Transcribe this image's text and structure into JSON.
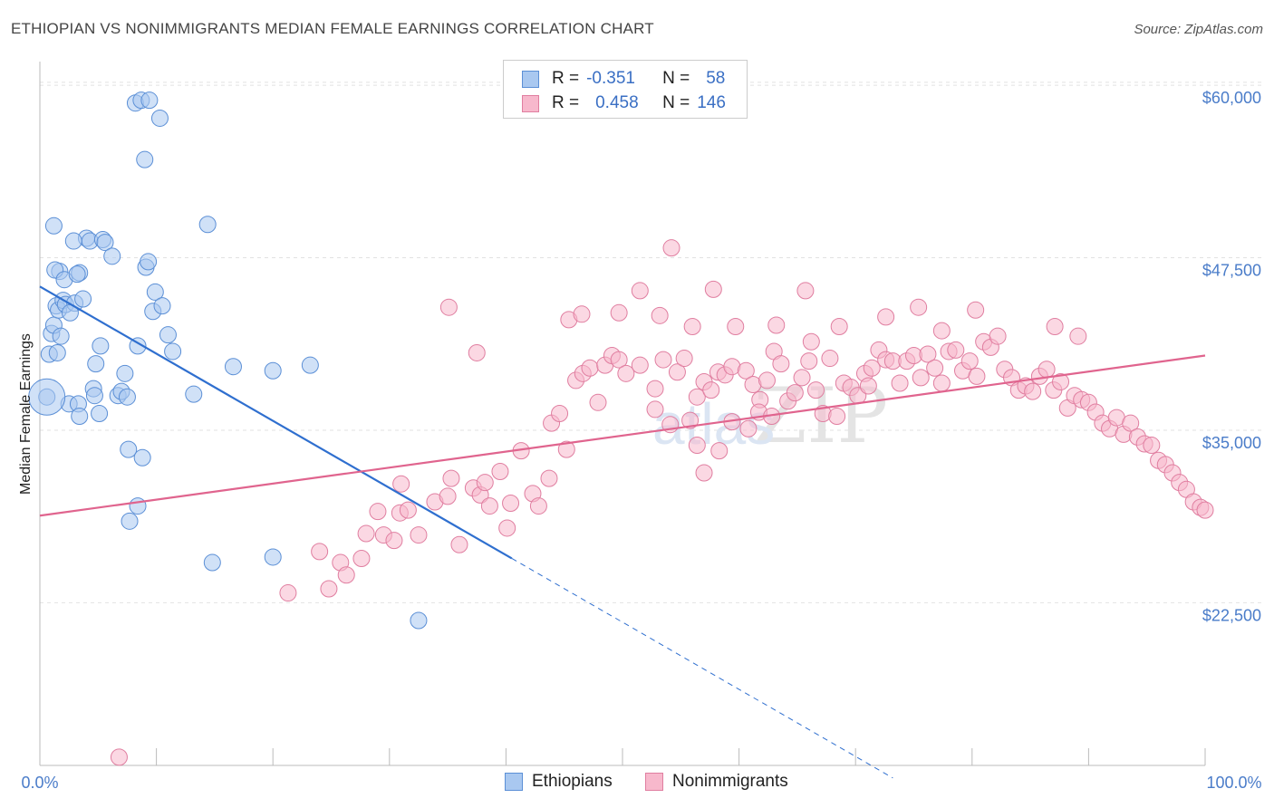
{
  "header": {
    "title": "ETHIOPIAN VS NONIMMIGRANTS MEDIAN FEMALE EARNINGS CORRELATION CHART",
    "source": "Source: ZipAtlas.com"
  },
  "legend": {
    "rows": [
      {
        "r_label": "R =",
        "r_value": "-0.351",
        "n_label": "N =",
        "n_value": "58",
        "color": "#a9c8f0",
        "stroke": "#5b8fd6"
      },
      {
        "r_label": "R =",
        "r_value": "0.458",
        "n_label": "N =",
        "n_value": "146",
        "color": "#f7b8cc",
        "stroke": "#e07ea0"
      }
    ],
    "bottom": [
      "Ethiopians",
      "Nonimmigrants"
    ]
  },
  "watermark": {
    "zip": "ZIP",
    "atlas": "atlas"
  },
  "chart_data": {
    "type": "scatter",
    "title": "ETHIOPIAN VS NONIMMIGRANTS MEDIAN FEMALE EARNINGS CORRELATION CHART",
    "xlabel": "",
    "ylabel": "Median Female Earnings",
    "xlim": [
      0,
      100
    ],
    "ylim": [
      11500,
      62500
    ],
    "x_tick_labels": [
      "0.0%",
      "100.0%"
    ],
    "y_ticks": [
      22500,
      35000,
      47500,
      60000
    ],
    "y_tick_labels": [
      "$22,500",
      "$35,000",
      "$47,500",
      "$60,000"
    ],
    "grid": true,
    "series": [
      {
        "name": "Ethiopians",
        "color": "#a9c8f0",
        "stroke": "#5b8fd6",
        "trend": {
          "x0": 0,
          "y0": 46200,
          "x1": 40.5,
          "y1": 26500,
          "dash_to_x": 73.2
        },
        "points": [
          [
            0.6,
            38200
          ],
          [
            0.8,
            41300
          ],
          [
            1.0,
            42800
          ],
          [
            1.2,
            43400
          ],
          [
            1.4,
            44800
          ],
          [
            1.5,
            41400
          ],
          [
            1.7,
            47300
          ],
          [
            1.2,
            50600
          ],
          [
            1.3,
            47400
          ],
          [
            1.6,
            44500
          ],
          [
            2.0,
            45200
          ],
          [
            2.1,
            46700
          ],
          [
            2.2,
            44900
          ],
          [
            1.8,
            42600
          ],
          [
            3.0,
            45000
          ],
          [
            2.6,
            44300
          ],
          [
            3.4,
            47200
          ],
          [
            3.7,
            45300
          ],
          [
            4.0,
            49700
          ],
          [
            4.3,
            49500
          ],
          [
            2.5,
            37700
          ],
          [
            2.9,
            49500
          ],
          [
            3.2,
            47100
          ],
          [
            3.3,
            37700
          ],
          [
            3.4,
            36800
          ],
          [
            4.6,
            38800
          ],
          [
            4.8,
            40600
          ],
          [
            5.1,
            37000
          ],
          [
            5.4,
            49600
          ],
          [
            5.6,
            49400
          ],
          [
            6.2,
            48400
          ],
          [
            6.7,
            38300
          ],
          [
            4.7,
            38300
          ],
          [
            7.0,
            38600
          ],
          [
            7.3,
            39900
          ],
          [
            7.5,
            38200
          ],
          [
            9.1,
            47600
          ],
          [
            9.3,
            48000
          ],
          [
            9.7,
            44400
          ],
          [
            9.9,
            45800
          ],
          [
            10.5,
            44800
          ],
          [
            11.0,
            42700
          ],
          [
            8.2,
            59500
          ],
          [
            8.7,
            59700
          ],
          [
            9.4,
            59700
          ],
          [
            10.3,
            58400
          ],
          [
            9.0,
            55400
          ],
          [
            14.4,
            50700
          ],
          [
            5.2,
            41900
          ],
          [
            8.4,
            41900
          ],
          [
            7.6,
            34400
          ],
          [
            8.8,
            33800
          ],
          [
            8.4,
            30300
          ],
          [
            7.7,
            29200
          ],
          [
            11.4,
            41500
          ],
          [
            13.2,
            38400
          ],
          [
            16.6,
            40400
          ],
          [
            20.0,
            40100
          ],
          [
            23.2,
            40500
          ],
          [
            14.8,
            26200
          ],
          [
            20.0,
            26600
          ],
          [
            32.5,
            22000
          ]
        ]
      },
      {
        "name": "Nonimmigrants",
        "color": "#f7b8cc",
        "stroke": "#e07ea0",
        "trend": {
          "x0": 0,
          "y0": 29600,
          "x1": 100,
          "y1": 41200
        },
        "points": [
          [
            6.8,
            12100
          ],
          [
            21.3,
            24000
          ],
          [
            24.8,
            24300
          ],
          [
            24.0,
            27000
          ],
          [
            25.8,
            26200
          ],
          [
            26.3,
            25300
          ],
          [
            27.6,
            26500
          ],
          [
            28.0,
            28300
          ],
          [
            29.0,
            29900
          ],
          [
            29.5,
            28200
          ],
          [
            30.4,
            27800
          ],
          [
            30.9,
            29800
          ],
          [
            31.6,
            30000
          ],
          [
            32.5,
            28200
          ],
          [
            31.0,
            31900
          ],
          [
            33.9,
            30600
          ],
          [
            35.0,
            31000
          ],
          [
            35.3,
            32300
          ],
          [
            36.0,
            27500
          ],
          [
            37.2,
            31600
          ],
          [
            37.8,
            31100
          ],
          [
            38.2,
            32000
          ],
          [
            38.6,
            30300
          ],
          [
            39.5,
            32800
          ],
          [
            40.1,
            28700
          ],
          [
            40.4,
            30500
          ],
          [
            41.3,
            34300
          ],
          [
            42.3,
            31200
          ],
          [
            42.8,
            30300
          ],
          [
            43.7,
            32300
          ],
          [
            43.9,
            36300
          ],
          [
            44.6,
            37000
          ],
          [
            45.2,
            34400
          ],
          [
            46.0,
            39400
          ],
          [
            46.6,
            39900
          ],
          [
            47.2,
            40300
          ],
          [
            47.9,
            37800
          ],
          [
            48.5,
            40500
          ],
          [
            49.1,
            41200
          ],
          [
            49.7,
            40900
          ],
          [
            50.3,
            39900
          ],
          [
            51.5,
            40500
          ],
          [
            52.8,
            38800
          ],
          [
            53.5,
            40900
          ],
          [
            54.1,
            36200
          ],
          [
            54.7,
            40000
          ],
          [
            55.3,
            41000
          ],
          [
            55.8,
            36500
          ],
          [
            56.4,
            38200
          ],
          [
            57.0,
            39300
          ],
          [
            57.6,
            38700
          ],
          [
            58.2,
            40000
          ],
          [
            58.8,
            39800
          ],
          [
            59.4,
            40400
          ],
          [
            60.6,
            40100
          ],
          [
            61.2,
            39100
          ],
          [
            61.8,
            38000
          ],
          [
            62.4,
            39400
          ],
          [
            63.0,
            41500
          ],
          [
            63.6,
            40600
          ],
          [
            64.2,
            37900
          ],
          [
            64.8,
            38500
          ],
          [
            65.4,
            39600
          ],
          [
            66.0,
            40800
          ],
          [
            66.6,
            38700
          ],
          [
            67.2,
            37000
          ],
          [
            67.8,
            41000
          ],
          [
            68.4,
            36800
          ],
          [
            69.0,
            39200
          ],
          [
            69.6,
            38900
          ],
          [
            70.2,
            38300
          ],
          [
            70.8,
            39900
          ],
          [
            71.4,
            40300
          ],
          [
            72.0,
            41600
          ],
          [
            72.6,
            40900
          ],
          [
            73.2,
            40800
          ],
          [
            73.8,
            39200
          ],
          [
            74.4,
            40800
          ],
          [
            75.0,
            41200
          ],
          [
            75.6,
            39600
          ],
          [
            76.2,
            41300
          ],
          [
            76.8,
            40300
          ],
          [
            77.4,
            39200
          ],
          [
            78.0,
            41500
          ],
          [
            78.6,
            41600
          ],
          [
            79.2,
            40100
          ],
          [
            79.8,
            40800
          ],
          [
            80.4,
            39700
          ],
          [
            81.0,
            42200
          ],
          [
            81.6,
            41800
          ],
          [
            82.2,
            42600
          ],
          [
            82.8,
            40200
          ],
          [
            83.4,
            39600
          ],
          [
            84.0,
            38700
          ],
          [
            84.6,
            39000
          ],
          [
            85.2,
            38600
          ],
          [
            85.8,
            39700
          ],
          [
            86.4,
            40200
          ],
          [
            87.0,
            38700
          ],
          [
            87.6,
            39300
          ],
          [
            88.2,
            37400
          ],
          [
            88.8,
            38300
          ],
          [
            89.4,
            38000
          ],
          [
            90.0,
            37800
          ],
          [
            90.6,
            37100
          ],
          [
            91.2,
            36300
          ],
          [
            91.8,
            35900
          ],
          [
            92.4,
            36700
          ],
          [
            93.0,
            35500
          ],
          [
            93.6,
            36300
          ],
          [
            94.2,
            35300
          ],
          [
            94.8,
            34800
          ],
          [
            95.4,
            34700
          ],
          [
            96.0,
            33600
          ],
          [
            96.6,
            33300
          ],
          [
            97.2,
            32700
          ],
          [
            97.8,
            32000
          ],
          [
            98.4,
            31500
          ],
          [
            99.0,
            30600
          ],
          [
            99.6,
            30200
          ],
          [
            100.0,
            30000
          ],
          [
            35.1,
            44700
          ],
          [
            37.5,
            41400
          ],
          [
            45.4,
            43800
          ],
          [
            46.5,
            44200
          ],
          [
            49.7,
            44300
          ],
          [
            51.5,
            45900
          ],
          [
            53.2,
            44100
          ],
          [
            56.0,
            43300
          ],
          [
            57.8,
            46000
          ],
          [
            59.7,
            43300
          ],
          [
            63.2,
            43400
          ],
          [
            65.7,
            45900
          ],
          [
            66.2,
            42200
          ],
          [
            68.6,
            43300
          ],
          [
            71.1,
            39000
          ],
          [
            72.6,
            44000
          ],
          [
            75.4,
            44700
          ],
          [
            77.4,
            43000
          ],
          [
            80.3,
            44500
          ],
          [
            87.1,
            43300
          ],
          [
            89.1,
            42600
          ],
          [
            54.2,
            49000
          ],
          [
            52.8,
            37300
          ],
          [
            56.4,
            34700
          ],
          [
            57.0,
            32700
          ],
          [
            58.3,
            34300
          ],
          [
            59.4,
            36400
          ],
          [
            60.8,
            35900
          ],
          [
            61.7,
            37100
          ],
          [
            62.8,
            36800
          ]
        ]
      }
    ]
  }
}
